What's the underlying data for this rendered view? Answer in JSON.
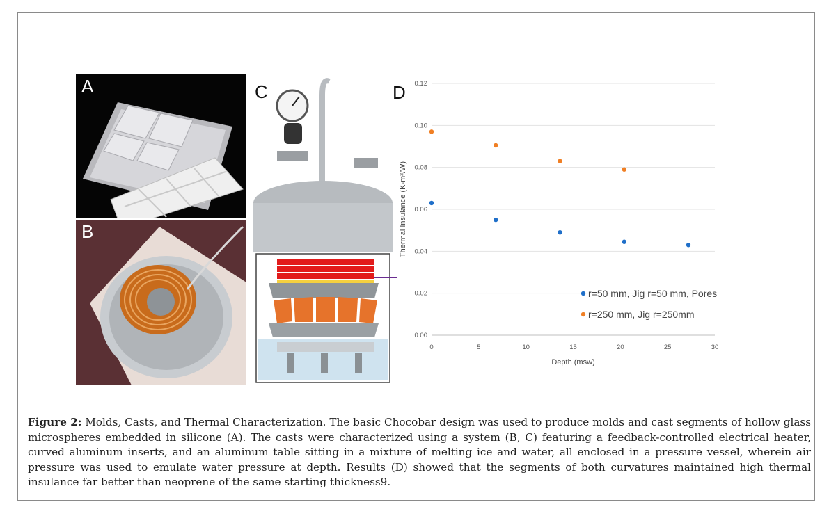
{
  "panels": {
    "a": "A",
    "b": "B",
    "c": "C",
    "d": "D"
  },
  "chart_data": {
    "type": "scatter",
    "xlabel": "Depth (msw)",
    "ylabel": "Thermal Insulance (K-m²/W)",
    "xlim": [
      0,
      30
    ],
    "ylim": [
      0,
      0.12
    ],
    "xticks": [
      "0",
      "5",
      "10",
      "15",
      "20",
      "25",
      "30"
    ],
    "yticks": [
      "0.00",
      "0.02",
      "0.04",
      "0.06",
      "0.08",
      "0.10",
      "0.12"
    ],
    "grid": "horizontal",
    "legend_position": "lower-right",
    "series": [
      {
        "name": "r=50 mm, Jig r=50 mm, Pores",
        "color": "#1f6fc9",
        "x": [
          0,
          6.8,
          13.6,
          20.4,
          27.2
        ],
        "y": [
          0.063,
          0.055,
          0.049,
          0.0445,
          0.043
        ]
      },
      {
        "name": "r=250 mm, Jig r=250mm",
        "color": "#f07f24",
        "x": [
          0,
          6.8,
          13.6,
          20.4
        ],
        "y": [
          0.097,
          0.0905,
          0.083,
          0.079
        ]
      }
    ]
  },
  "caption": {
    "label": "Figure 2:",
    "text": " Molds, Casts, and Thermal Characterization. The basic Chocobar design was used to produce molds and cast segments of hollow glass microspheres embedded in silicone (A). The casts were characterized using a system (B, C) featuring a feedback-controlled electrical heater, curved aluminum inserts, and an aluminum table sitting in a mixture of melting ice and water, all enclosed in a pressure vessel, wherein air pressure was used to emulate water pressure at depth. Results (D) showed that the segments of both curvatures maintained high thermal insulance far better than neoprene of the same starting thickness9."
  }
}
